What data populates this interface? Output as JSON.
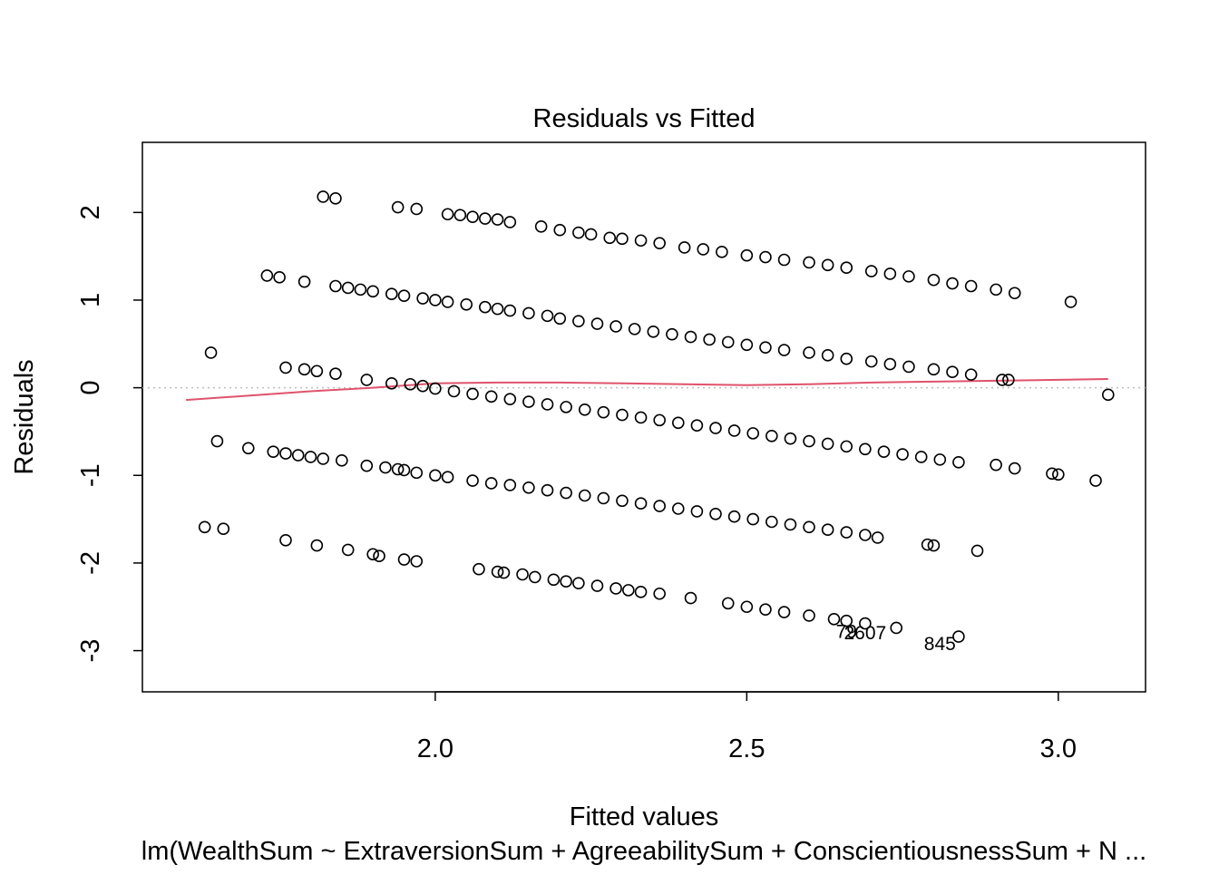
{
  "chart_data": {
    "type": "scatter",
    "title": "Residuals vs Fitted",
    "xlabel": "Fitted values",
    "ylabel": "Residuals",
    "subtitle": "lm(WealthSum ~ ExtraversionSum + AgreeabilitySum + ConscientiousnessSum + N ...",
    "xlim": [
      1.53,
      3.14
    ],
    "ylim": [
      -3.47,
      2.8
    ],
    "x_ticks": [
      2.0,
      2.5,
      3.0
    ],
    "x_tick_labels": [
      "2.0",
      "2.5",
      "3.0"
    ],
    "y_ticks": [
      -3,
      -2,
      -1,
      0,
      1,
      2
    ],
    "y_tick_labels": [
      "-3",
      "-2",
      "-1",
      "0",
      "1",
      "2"
    ],
    "reference_line": {
      "y": 0,
      "color": "#bebebe",
      "style": "dotted"
    },
    "smoother": {
      "color": "#df536b",
      "x": [
        1.6,
        1.7,
        1.8,
        1.9,
        2.0,
        2.1,
        2.2,
        2.3,
        2.4,
        2.5,
        2.6,
        2.7,
        2.8,
        2.9,
        3.0,
        3.08
      ],
      "y": [
        -0.14,
        -0.09,
        -0.04,
        0.0,
        0.05,
        0.06,
        0.06,
        0.05,
        0.04,
        0.03,
        0.04,
        0.06,
        0.07,
        0.08,
        0.09,
        0.1
      ]
    },
    "bands": [
      {
        "x": [
          1.82,
          1.84,
          1.94,
          1.97,
          2.02,
          2.04,
          2.06,
          2.08,
          2.1,
          2.12,
          2.17,
          2.2,
          2.23,
          2.25,
          2.28,
          2.3,
          2.33,
          2.36,
          2.4,
          2.43,
          2.46,
          2.5,
          2.53,
          2.56,
          2.6,
          2.63,
          2.66,
          2.7,
          2.73,
          2.76,
          2.8,
          2.83,
          2.86,
          2.9,
          2.93
        ],
        "y": [
          2.18,
          2.16,
          2.06,
          2.04,
          1.98,
          1.97,
          1.95,
          1.93,
          1.92,
          1.89,
          1.84,
          1.8,
          1.77,
          1.75,
          1.71,
          1.7,
          1.68,
          1.65,
          1.6,
          1.58,
          1.55,
          1.51,
          1.49,
          1.46,
          1.43,
          1.4,
          1.37,
          1.33,
          1.3,
          1.27,
          1.23,
          1.19,
          1.16,
          1.12,
          1.08
        ]
      },
      {
        "x": [
          3.02
        ],
        "y": [
          0.98
        ]
      },
      {
        "x": [
          1.73,
          1.75,
          1.79,
          1.84,
          1.86,
          1.88,
          1.9,
          1.93,
          1.95,
          1.98,
          2.0,
          2.02,
          2.05,
          2.08,
          2.1,
          2.12,
          2.15,
          2.18,
          2.2,
          2.23,
          2.26,
          2.29,
          2.32,
          2.35,
          2.38,
          2.41,
          2.44,
          2.47,
          2.5,
          2.53,
          2.56,
          2.6,
          2.63,
          2.66,
          2.7,
          2.73,
          2.76,
          2.8,
          2.83,
          2.86
        ],
        "y": [
          1.28,
          1.26,
          1.21,
          1.16,
          1.14,
          1.12,
          1.1,
          1.07,
          1.05,
          1.02,
          1.0,
          0.98,
          0.95,
          0.92,
          0.9,
          0.88,
          0.85,
          0.82,
          0.79,
          0.76,
          0.73,
          0.7,
          0.67,
          0.64,
          0.61,
          0.58,
          0.55,
          0.52,
          0.49,
          0.46,
          0.43,
          0.4,
          0.37,
          0.33,
          0.3,
          0.27,
          0.24,
          0.21,
          0.18,
          0.15
        ]
      },
      {
        "x": [
          2.91,
          2.92
        ],
        "y": [
          0.09,
          0.09
        ]
      },
      {
        "x": [
          1.64,
          1.76,
          1.79,
          1.81,
          1.84,
          1.89
        ],
        "y": [
          0.4,
          0.23,
          0.21,
          0.19,
          0.16,
          0.09
        ]
      },
      {
        "x": [
          1.93,
          1.96,
          1.98,
          2.0,
          2.03,
          2.06,
          2.09,
          2.12,
          2.15,
          2.18,
          2.21,
          2.24,
          2.27,
          2.3,
          2.33,
          2.36,
          2.39,
          2.42,
          2.45,
          2.48,
          2.51,
          2.54,
          2.57,
          2.6,
          2.63,
          2.66,
          2.69,
          2.72,
          2.75,
          2.78,
          2.81,
          2.84
        ],
        "y": [
          0.05,
          0.04,
          0.02,
          -0.01,
          -0.04,
          -0.07,
          -0.1,
          -0.13,
          -0.16,
          -0.19,
          -0.22,
          -0.25,
          -0.28,
          -0.31,
          -0.34,
          -0.37,
          -0.4,
          -0.43,
          -0.46,
          -0.49,
          -0.52,
          -0.55,
          -0.58,
          -0.61,
          -0.64,
          -0.67,
          -0.7,
          -0.73,
          -0.76,
          -0.79,
          -0.82,
          -0.85
        ]
      },
      {
        "x": [
          2.9,
          2.93,
          2.99,
          3.0,
          3.06,
          3.08
        ],
        "y": [
          -0.88,
          -0.92,
          -0.98,
          -0.99,
          -1.06,
          -0.08
        ]
      },
      {
        "x": [
          1.65,
          1.7,
          1.74,
          1.76,
          1.78,
          1.8,
          1.82,
          1.85,
          1.89,
          1.92,
          1.94,
          1.95,
          1.97,
          2.0,
          2.02,
          2.06,
          2.09,
          2.12,
          2.15,
          2.18,
          2.21,
          2.24,
          2.27,
          2.3,
          2.33,
          2.36,
          2.39,
          2.42,
          2.45,
          2.48,
          2.51,
          2.54,
          2.57,
          2.6,
          2.63,
          2.66,
          2.69,
          2.71
        ],
        "y": [
          -0.61,
          -0.69,
          -0.73,
          -0.75,
          -0.77,
          -0.79,
          -0.81,
          -0.83,
          -0.89,
          -0.91,
          -0.93,
          -0.94,
          -0.97,
          -1.0,
          -1.02,
          -1.06,
          -1.09,
          -1.11,
          -1.14,
          -1.17,
          -1.2,
          -1.23,
          -1.26,
          -1.29,
          -1.32,
          -1.35,
          -1.38,
          -1.41,
          -1.44,
          -1.47,
          -1.5,
          -1.53,
          -1.56,
          -1.59,
          -1.62,
          -1.65,
          -1.68,
          -1.71
        ]
      },
      {
        "x": [
          2.79,
          2.8,
          2.87
        ],
        "y": [
          -1.79,
          -1.8,
          -1.86
        ]
      },
      {
        "x": [
          1.63,
          1.66,
          1.76,
          1.81,
          1.86,
          1.9,
          1.91,
          1.95,
          1.97,
          2.07,
          2.1,
          2.11,
          2.14,
          2.16,
          2.19,
          2.21,
          2.23,
          2.26,
          2.29,
          2.31,
          2.33,
          2.36,
          2.41,
          2.47,
          2.5,
          2.53,
          2.56,
          2.6,
          2.64,
          2.66,
          2.69,
          2.74,
          2.84
        ],
        "y": [
          -1.59,
          -1.61,
          -1.74,
          -1.8,
          -1.85,
          -1.9,
          -1.92,
          -1.96,
          -1.98,
          -2.07,
          -2.1,
          -2.11,
          -2.13,
          -2.16,
          -2.19,
          -2.21,
          -2.23,
          -2.26,
          -2.29,
          -2.31,
          -2.33,
          -2.35,
          -2.4,
          -2.46,
          -2.5,
          -2.53,
          -2.56,
          -2.6,
          -2.64,
          -2.66,
          -2.69,
          -2.74,
          -2.84
        ]
      }
    ],
    "point_labels": [
      {
        "text": "79",
        "x": 2.66,
        "y": -2.78
      },
      {
        "text": "2607",
        "x": 2.69,
        "y": -2.8
      },
      {
        "text": "845",
        "x": 2.81,
        "y": -2.92
      }
    ],
    "colors": {
      "points": "#000000",
      "smoother": "#df536b",
      "zero_line": "#bebebe",
      "frame": "#000000"
    }
  }
}
